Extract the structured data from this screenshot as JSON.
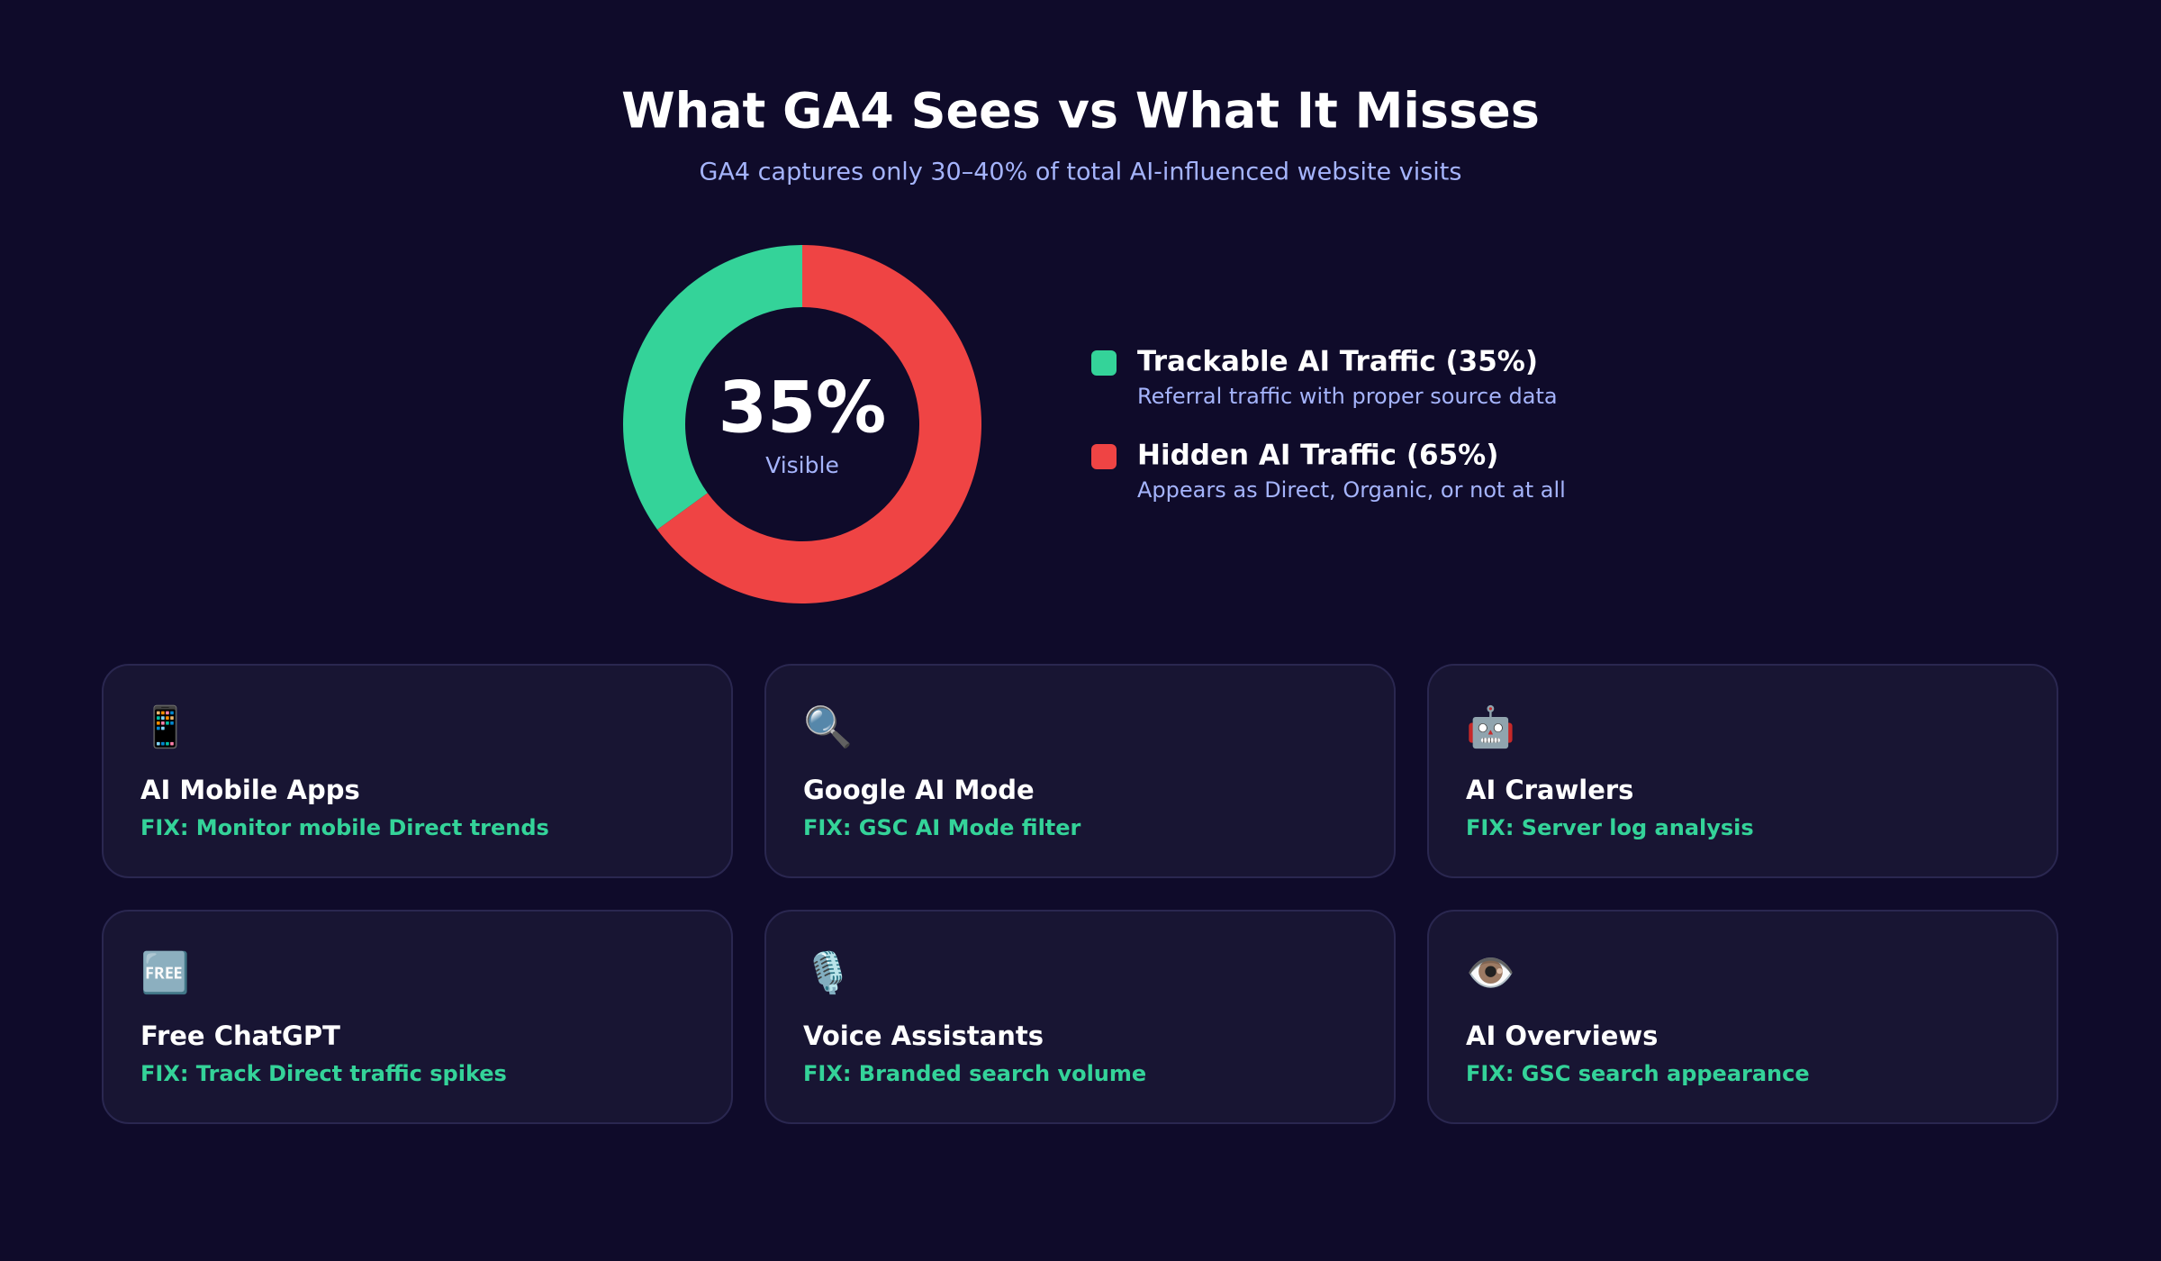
{
  "chart_data": {
    "type": "donut",
    "title": "What GA4 Sees vs What It Misses",
    "subtitle": "GA4 captures only 30–40% of total AI-influenced website visits",
    "center_text": "35%",
    "center_caption": "Visible",
    "categories": [
      "Trackable AI Traffic (35%)",
      "Hidden AI Traffic (65%)"
    ],
    "descriptions": [
      "Referral traffic with proper source data",
      "Appears as Direct, Organic, or not at all"
    ],
    "values": [
      35,
      65
    ],
    "colors": [
      "#34d399",
      "#ef4444"
    ]
  },
  "cards": [
    {
      "icon": "📱",
      "title": "AI Mobile Apps",
      "fix": "FIX: Monitor mobile Direct trends"
    },
    {
      "icon": "🔍",
      "title": "Google AI Mode",
      "fix": "FIX: GSC AI Mode filter"
    },
    {
      "icon": "🤖",
      "title": "AI Crawlers",
      "fix": "FIX: Server log analysis"
    },
    {
      "icon": "🆓",
      "title": "Free ChatGPT",
      "fix": "FIX: Track Direct traffic spikes"
    },
    {
      "icon": "🎙️",
      "title": "Voice Assistants",
      "fix": "FIX: Branded search volume"
    },
    {
      "icon": "👁️",
      "title": "AI Overviews",
      "fix": "FIX: GSC search appearance"
    }
  ]
}
